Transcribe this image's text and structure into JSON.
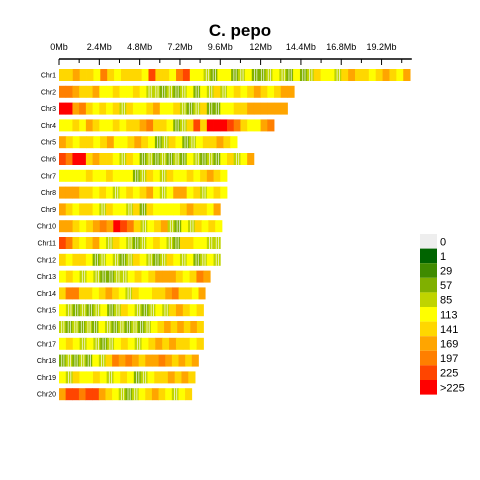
{
  "chart_data": {
    "type": "heatmap",
    "title": "C. pepo",
    "xlabel": "",
    "ylabel": "",
    "x_unit": "Mb",
    "xlim": [
      0,
      21
    ],
    "x_ticks": [
      {
        "value": 0,
        "label": "0Mb"
      },
      {
        "value": 2.4,
        "label": "2.4Mb"
      },
      {
        "value": 4.8,
        "label": "4.8Mb"
      },
      {
        "value": 7.2,
        "label": "7.2Mb"
      },
      {
        "value": 9.6,
        "label": "9.6Mb"
      },
      {
        "value": 12,
        "label": "12Mb"
      },
      {
        "value": 14.4,
        "label": "14.4Mb"
      },
      {
        "value": 16.8,
        "label": "16.8Mb"
      },
      {
        "value": 19.2,
        "label": "19.2Mb"
      }
    ],
    "chromosomes": [
      {
        "name": "Chr1",
        "length": 20.9
      },
      {
        "name": "Chr2",
        "length": 14.0
      },
      {
        "name": "Chr3",
        "length": 13.6
      },
      {
        "name": "Chr4",
        "length": 12.8
      },
      {
        "name": "Chr5",
        "length": 10.6
      },
      {
        "name": "Chr6",
        "length": 11.6
      },
      {
        "name": "Chr7",
        "length": 10.0
      },
      {
        "name": "Chr8",
        "length": 10.0
      },
      {
        "name": "Chr9",
        "length": 9.6
      },
      {
        "name": "Chr10",
        "length": 9.7
      },
      {
        "name": "Chr11",
        "length": 9.6
      },
      {
        "name": "Chr12",
        "length": 9.6
      },
      {
        "name": "Chr13",
        "length": 9.0
      },
      {
        "name": "Chr14",
        "length": 8.7
      },
      {
        "name": "Chr15",
        "length": 8.6
      },
      {
        "name": "Chr16",
        "length": 8.6
      },
      {
        "name": "Chr17",
        "length": 8.6
      },
      {
        "name": "Chr18",
        "length": 8.3
      },
      {
        "name": "Chr19",
        "length": 8.1
      },
      {
        "name": "Chr20",
        "length": 7.9
      }
    ],
    "legend": {
      "placement": "right",
      "bins": [
        {
          "label": "0",
          "color": "#eeeeee"
        },
        {
          "label": "1",
          "color": "#006400"
        },
        {
          "label": "29",
          "color": "#3f8b00"
        },
        {
          "label": "57",
          "color": "#80b000"
        },
        {
          "label": "85",
          "color": "#bfd400"
        },
        {
          "label": "113",
          "color": "#ffff00"
        },
        {
          "label": "141",
          "color": "#ffd700"
        },
        {
          "label": "169",
          "color": "#ffa500"
        },
        {
          "label": "197",
          "color": "#ff7f00"
        },
        {
          "label": "225",
          "color": "#ff4500"
        },
        {
          "label": ">225",
          "color": "#ff0000"
        }
      ]
    },
    "bins_per_chromosome": [
      [
        6,
        6,
        7,
        6,
        6,
        5,
        8,
        6,
        5,
        6,
        6,
        6,
        5,
        9,
        6,
        6,
        5,
        8,
        9,
        5,
        5,
        4,
        3,
        5,
        5,
        3,
        4,
        5,
        3,
        3,
        4,
        5,
        4,
        3,
        5,
        3,
        4,
        6,
        5,
        5,
        4,
        6,
        7,
        6,
        6,
        5,
        6,
        7,
        6,
        5,
        7
      ],
      [
        8,
        8,
        7,
        6,
        6,
        7,
        5,
        5,
        6,
        5,
        5,
        6,
        5,
        4,
        4,
        3,
        4,
        3,
        4,
        5,
        3,
        5,
        4,
        6,
        4,
        5,
        6,
        5,
        6,
        7,
        6,
        5,
        6,
        7,
        7
      ],
      [
        10,
        10,
        7,
        8,
        6,
        5,
        6,
        5,
        6,
        4,
        6,
        5,
        5,
        6,
        7,
        5,
        5,
        6,
        4,
        3,
        4,
        6,
        3,
        3,
        5,
        5,
        6,
        6,
        7,
        7,
        7,
        7,
        7,
        7
      ],
      [
        5,
        5,
        6,
        5,
        7,
        6,
        5,
        5,
        6,
        5,
        6,
        6,
        7,
        8,
        6,
        6,
        5,
        3,
        4,
        6,
        9,
        6,
        10,
        10,
        10,
        9,
        8,
        6,
        5,
        5,
        7,
        8
      ],
      [
        7,
        6,
        5,
        6,
        6,
        5,
        6,
        7,
        5,
        5,
        6,
        7,
        6,
        5,
        3,
        4,
        6,
        5,
        3,
        4,
        5,
        6,
        6,
        7,
        6,
        5
      ],
      [
        9,
        8,
        10,
        10,
        6,
        7,
        6,
        6,
        5,
        4,
        6,
        5,
        3,
        4,
        3,
        4,
        3,
        4,
        3,
        5,
        4,
        3,
        4,
        3,
        5,
        6,
        4,
        5,
        7
      ],
      [
        5,
        5,
        5,
        5,
        6,
        5,
        5,
        6,
        5,
        5,
        5,
        3,
        4,
        6,
        5,
        4,
        6,
        5,
        5,
        6,
        5,
        6,
        7,
        6,
        5
      ],
      [
        7,
        7,
        7,
        6,
        6,
        5,
        6,
        5,
        4,
        5,
        6,
        5,
        6,
        7,
        5,
        4,
        5,
        7,
        7,
        5,
        6,
        4,
        5,
        6,
        5
      ],
      [
        7,
        6,
        5,
        6,
        6,
        5,
        4,
        6,
        5,
        5,
        4,
        6,
        3,
        6,
        5,
        5,
        5,
        5,
        6,
        7,
        6,
        6,
        5,
        7
      ],
      [
        7,
        7,
        6,
        5,
        6,
        7,
        8,
        7,
        10,
        9,
        8,
        6,
        4,
        5,
        6,
        7,
        4,
        3,
        5,
        4,
        6,
        5,
        6,
        5
      ],
      [
        9,
        8,
        6,
        5,
        6,
        7,
        5,
        4,
        6,
        5,
        4,
        3,
        4,
        5,
        6,
        5,
        4,
        3,
        6,
        6,
        5,
        5,
        4,
        4
      ],
      [
        6,
        5,
        6,
        6,
        5,
        3,
        4,
        5,
        4,
        3,
        4,
        6,
        5,
        4,
        3,
        4,
        6,
        5,
        4,
        5,
        3,
        4,
        5,
        4
      ],
      [
        5,
        6,
        5,
        4,
        5,
        4,
        3,
        3,
        4,
        4,
        5,
        6,
        5,
        6,
        7,
        7,
        7,
        6,
        5,
        6,
        8,
        7
      ],
      [
        6,
        8,
        8,
        6,
        6,
        5,
        6,
        7,
        6,
        5,
        4,
        6,
        5,
        5,
        6,
        6,
        7,
        8,
        6,
        6,
        5,
        7
      ],
      [
        5,
        4,
        3,
        4,
        3,
        4,
        5,
        3,
        4,
        6,
        5,
        4,
        3,
        4,
        5,
        4,
        6,
        7,
        6,
        5,
        6
      ],
      [
        4,
        3,
        4,
        3,
        4,
        3,
        5,
        4,
        3,
        4,
        3,
        4,
        3,
        4,
        5,
        6,
        7,
        6,
        7,
        6,
        7,
        6
      ],
      [
        5,
        6,
        5,
        4,
        5,
        4,
        3,
        4,
        5,
        6,
        5,
        4,
        5,
        6,
        7,
        6,
        7,
        6,
        6,
        5,
        6
      ],
      [
        3,
        4,
        3,
        4,
        3,
        5,
        4,
        6,
        8,
        7,
        8,
        7,
        6,
        7,
        7,
        8,
        7,
        6,
        7,
        6,
        7
      ],
      [
        5,
        4,
        6,
        5,
        5,
        6,
        5,
        4,
        5,
        6,
        5,
        3,
        4,
        5,
        6,
        6,
        7,
        6,
        7,
        6
      ],
      [
        7,
        9,
        9,
        8,
        9,
        9,
        7,
        6,
        5,
        4,
        3,
        4,
        5,
        6,
        7,
        6,
        5,
        4,
        5,
        6
      ]
    ]
  }
}
